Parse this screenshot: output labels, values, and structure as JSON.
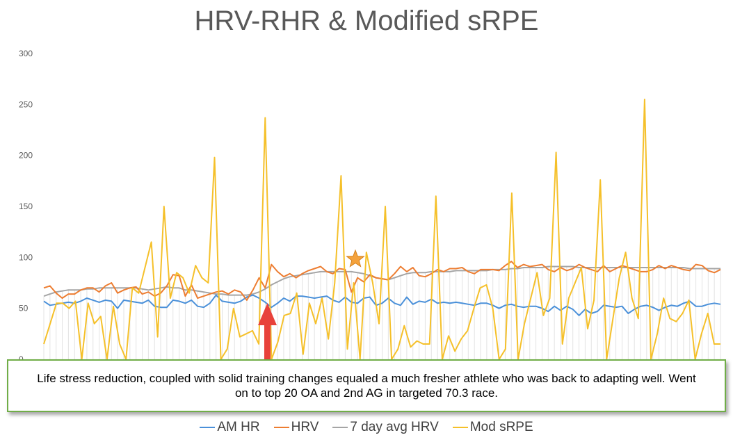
{
  "chart_data": {
    "type": "line",
    "title": "HRV-RHR & Modified sRPE",
    "xlabel": "",
    "ylabel": "",
    "ylim": [
      0,
      300
    ],
    "yticks": [
      "300",
      "250",
      "200",
      "150",
      "100",
      "50",
      "0"
    ],
    "grid": "vertical",
    "legend_position": "bottom",
    "series": [
      {
        "name": "AM HR",
        "color": "#4a90d9",
        "values": [
          57,
          53,
          54,
          55,
          56,
          55,
          57,
          60,
          58,
          56,
          58,
          57,
          50,
          58,
          57,
          56,
          55,
          58,
          52,
          51,
          51,
          58,
          57,
          55,
          58,
          52,
          51,
          55,
          63,
          57,
          56,
          55,
          57,
          61,
          63,
          60,
          56,
          51,
          55,
          60,
          57,
          62,
          62,
          61,
          60,
          61,
          62,
          58,
          56,
          61,
          56,
          55,
          60,
          61,
          53,
          55,
          60,
          55,
          53,
          61,
          54,
          57,
          56,
          59,
          55,
          56,
          55,
          56,
          55,
          54,
          53,
          55,
          55,
          53,
          50,
          53,
          54,
          52,
          51,
          52,
          52,
          50,
          47,
          52,
          48,
          52,
          49,
          43,
          49,
          45,
          47,
          53,
          52,
          51,
          52,
          45,
          49,
          52,
          53,
          51,
          48,
          51,
          53,
          52,
          55,
          57,
          52,
          52,
          54,
          55,
          54
        ]
      },
      {
        "name": "HRV",
        "color": "#ed7d31",
        "values": [
          70,
          72,
          65,
          60,
          64,
          64,
          68,
          70,
          70,
          66,
          72,
          75,
          65,
          68,
          70,
          71,
          64,
          66,
          62,
          65,
          72,
          83,
          82,
          62,
          73,
          60,
          62,
          64,
          66,
          67,
          64,
          68,
          66,
          58,
          68,
          80,
          70,
          93,
          86,
          81,
          84,
          80,
          84,
          87,
          89,
          91,
          86,
          84,
          89,
          88,
          66,
          80,
          76,
          83,
          80,
          79,
          78,
          84,
          91,
          86,
          90,
          82,
          81,
          84,
          88,
          86,
          89,
          89,
          90,
          86,
          84,
          88,
          88,
          88,
          87,
          92,
          96,
          90,
          93,
          91,
          92,
          93,
          88,
          86,
          90,
          87,
          89,
          93,
          90,
          88,
          86,
          92,
          86,
          89,
          92,
          90,
          88,
          86,
          86,
          88,
          92,
          89,
          92,
          90,
          88,
          87,
          93,
          92,
          87,
          85,
          88
        ]
      },
      {
        "name": "7 day avg HRV",
        "color": "#a5a5a5",
        "values": [
          62,
          64,
          66,
          67,
          68,
          68,
          68,
          69,
          69,
          70,
          70,
          70,
          70,
          70,
          70,
          70,
          69,
          68,
          69,
          70,
          71,
          70,
          70,
          68,
          68,
          67,
          66,
          65,
          64,
          64,
          63,
          63,
          63,
          63,
          64,
          66,
          69,
          73,
          76,
          79,
          81,
          82,
          83,
          84,
          85,
          86,
          86,
          86,
          86,
          86,
          86,
          85,
          84,
          82,
          80,
          79,
          78,
          80,
          82,
          84,
          85,
          85,
          85,
          86,
          86,
          86,
          86,
          87,
          87,
          87,
          87,
          87,
          87,
          88,
          88,
          88,
          89,
          89,
          90,
          90,
          90,
          90,
          91,
          91,
          91,
          91,
          91,
          90,
          90,
          90,
          90,
          90,
          90,
          90,
          90,
          90,
          90,
          90,
          90,
          90,
          90,
          90,
          90,
          90,
          90,
          89,
          89,
          89,
          89,
          89,
          89
        ]
      },
      {
        "name": "Mod sRPE",
        "color": "#f5c02a",
        "values": [
          15,
          35,
          55,
          55,
          50,
          57,
          0,
          55,
          35,
          42,
          0,
          52,
          15,
          0,
          70,
          65,
          90,
          115,
          22,
          150,
          60,
          85,
          80,
          65,
          92,
          80,
          75,
          198,
          0,
          10,
          50,
          22,
          25,
          28,
          15,
          237,
          0,
          17,
          43,
          45,
          65,
          5,
          55,
          35,
          60,
          20,
          75,
          180,
          10,
          75,
          0,
          105,
          75,
          35,
          150,
          0,
          10,
          33,
          12,
          18,
          15,
          15,
          160,
          0,
          23,
          8,
          20,
          28,
          50,
          70,
          73,
          50,
          0,
          10,
          163,
          0,
          35,
          60,
          85,
          43,
          60,
          203,
          15,
          60,
          75,
          90,
          30,
          58,
          176,
          0,
          40,
          80,
          105,
          60,
          40,
          255,
          0,
          25,
          60,
          40,
          37,
          45,
          58,
          0,
          25,
          45,
          15,
          15
        ]
      }
    ],
    "annotations": {
      "text": "Life stress reduction, coupled with solid training changes equaled a much fresher athlete who was back to adapting well.  Went on to top 20 OA and 2nd AG in targeted 70.3 race.",
      "arrow_color": "#e8423b",
      "star_color": "#f4a23c"
    }
  }
}
